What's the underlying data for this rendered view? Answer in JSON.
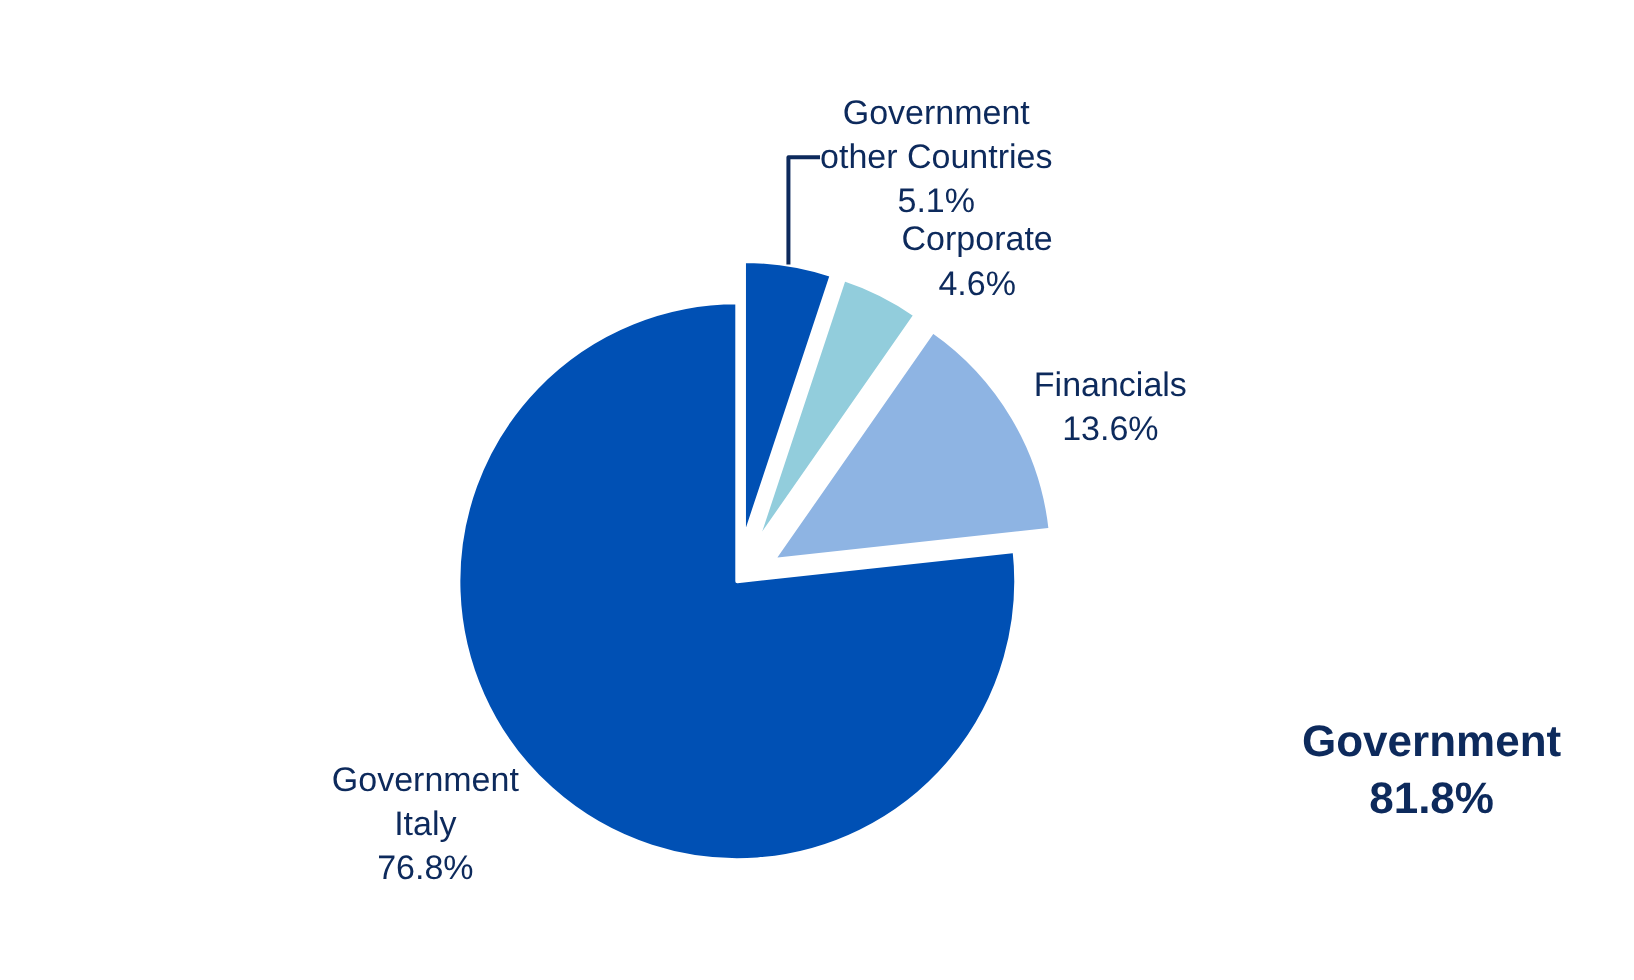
{
  "chart_data": {
    "type": "pie",
    "categories": [
      "Government other Countries",
      "Corporate",
      "Financials",
      "Government Italy"
    ],
    "values": [
      5.1,
      4.6,
      13.6,
      76.8
    ],
    "colors": [
      "#0050b4",
      "#92cddc",
      "#8eb4e3",
      "#0050b4"
    ],
    "annotations": [
      "Government 81.8%"
    ],
    "value_labels": [
      "5.1%",
      "4.6%",
      "13.6%",
      "76.8%"
    ],
    "legend": false
  }
}
